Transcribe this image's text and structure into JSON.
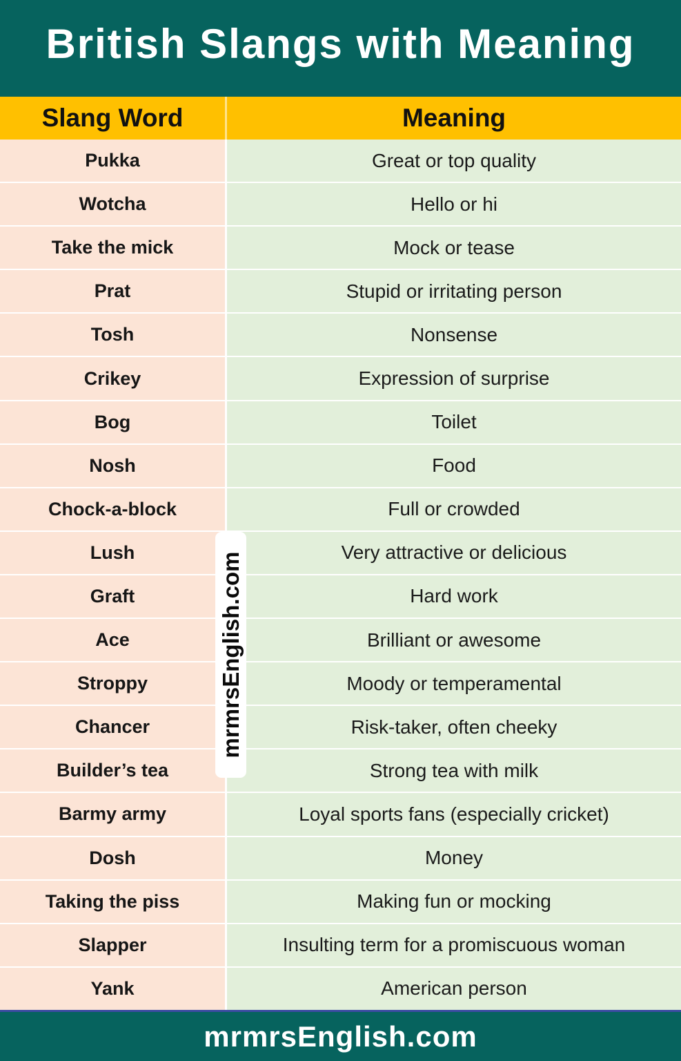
{
  "header": {
    "title": "British Slangs with Meaning"
  },
  "table": {
    "columns": [
      "Slang Word",
      "Meaning"
    ],
    "rows": [
      {
        "word": "Pukka",
        "meaning": "Great or top quality"
      },
      {
        "word": "Wotcha",
        "meaning": "Hello or hi"
      },
      {
        "word": "Take the mick",
        "meaning": "Mock or tease"
      },
      {
        "word": "Prat",
        "meaning": "Stupid or irritating person"
      },
      {
        "word": "Tosh",
        "meaning": "Nonsense"
      },
      {
        "word": "Crikey",
        "meaning": "Expression of surprise"
      },
      {
        "word": "Bog",
        "meaning": "Toilet"
      },
      {
        "word": "Nosh",
        "meaning": "Food"
      },
      {
        "word": "Chock-a-block",
        "meaning": "Full or crowded"
      },
      {
        "word": "Lush",
        "meaning": "Very attractive or delicious"
      },
      {
        "word": "Graft",
        "meaning": "Hard work"
      },
      {
        "word": "Ace",
        "meaning": "Brilliant or awesome"
      },
      {
        "word": "Stroppy",
        "meaning": "Moody or temperamental"
      },
      {
        "word": "Chancer",
        "meaning": "Risk-taker, often cheeky"
      },
      {
        "word": "Builder’s tea",
        "meaning": "Strong tea with milk"
      },
      {
        "word": "Barmy army",
        "meaning": "Loyal sports fans (especially cricket)"
      },
      {
        "word": "Dosh",
        "meaning": "Money"
      },
      {
        "word": "Taking the piss",
        "meaning": "Making fun or mocking"
      },
      {
        "word": "Slapper",
        "meaning": "Insulting term for a promiscuous woman"
      },
      {
        "word": "Yank",
        "meaning": "American person"
      }
    ]
  },
  "watermark": {
    "text": "mrmrsEnglish.com"
  },
  "footer": {
    "text": "mrmrsEnglish.com"
  },
  "colors": {
    "teal": "#06635E",
    "gold": "#FFC000",
    "peach": "#FCE4D6",
    "green": "#E2EFDA",
    "navy_line": "#3B4BA2",
    "title_text": "#FFFFFF",
    "body_text": "#1A1A1A"
  }
}
